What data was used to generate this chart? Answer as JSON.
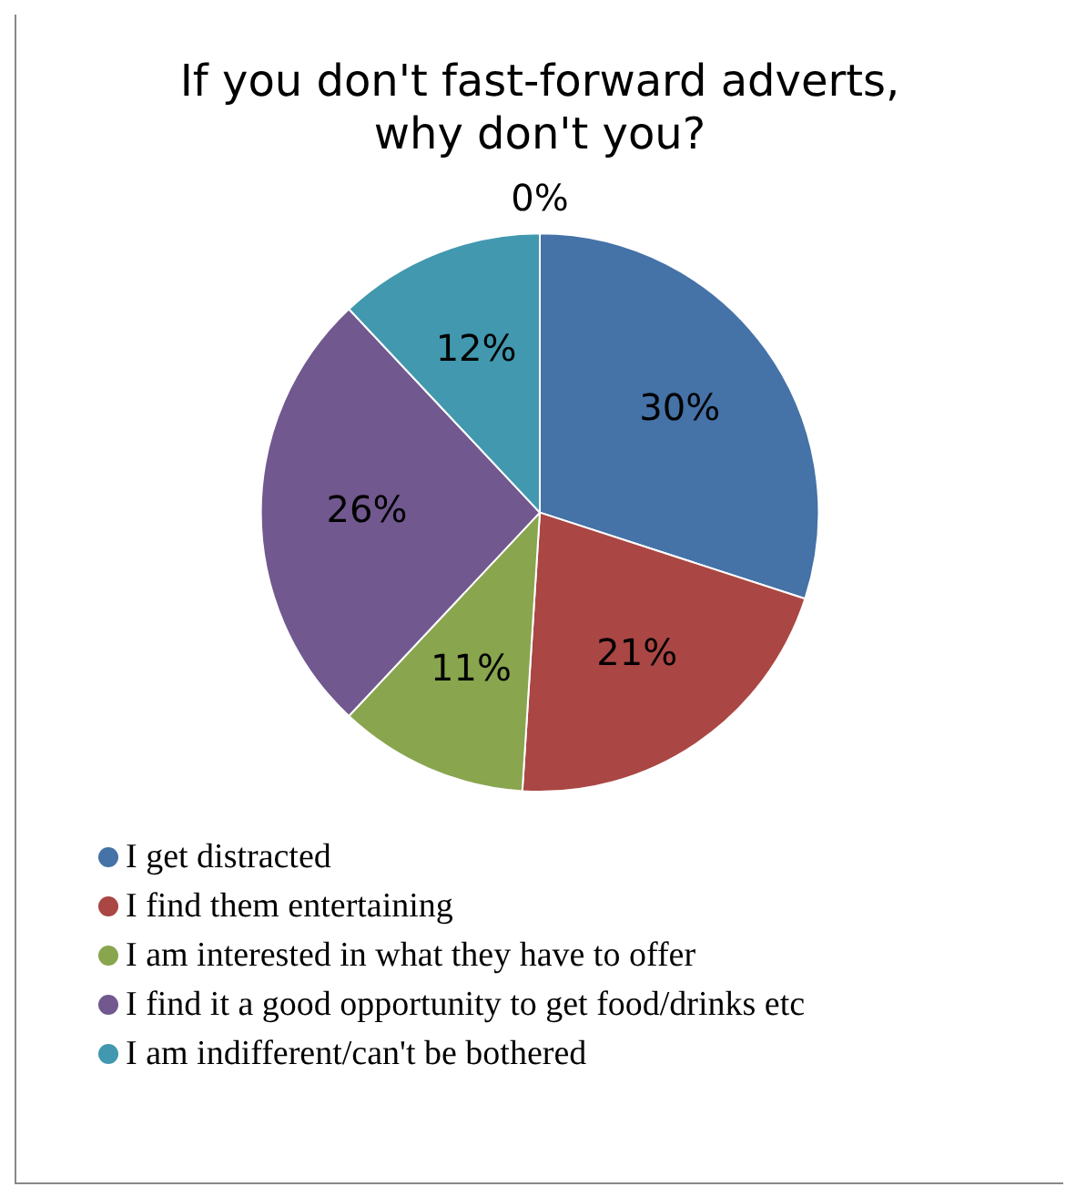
{
  "chart_data": {
    "type": "pie",
    "title": "If you don't fast-forward adverts, why don't you?",
    "categories": [
      "I get distracted",
      "I find them entertaining",
      "I am interested in what they have to offer",
      "I find it a good opportunity to get food/drinks etc",
      "I am indifferent/can't be bothered",
      null
    ],
    "values": [
      30,
      21,
      11,
      26,
      12,
      0
    ],
    "colors": [
      "#4572a7",
      "#aa4643",
      "#89a54e",
      "#71588f",
      "#4198af",
      "#db843d"
    ],
    "value_labels": [
      "30%",
      "21%",
      "11%",
      "26%",
      "12%",
      "0%"
    ],
    "legend": "bottom"
  }
}
